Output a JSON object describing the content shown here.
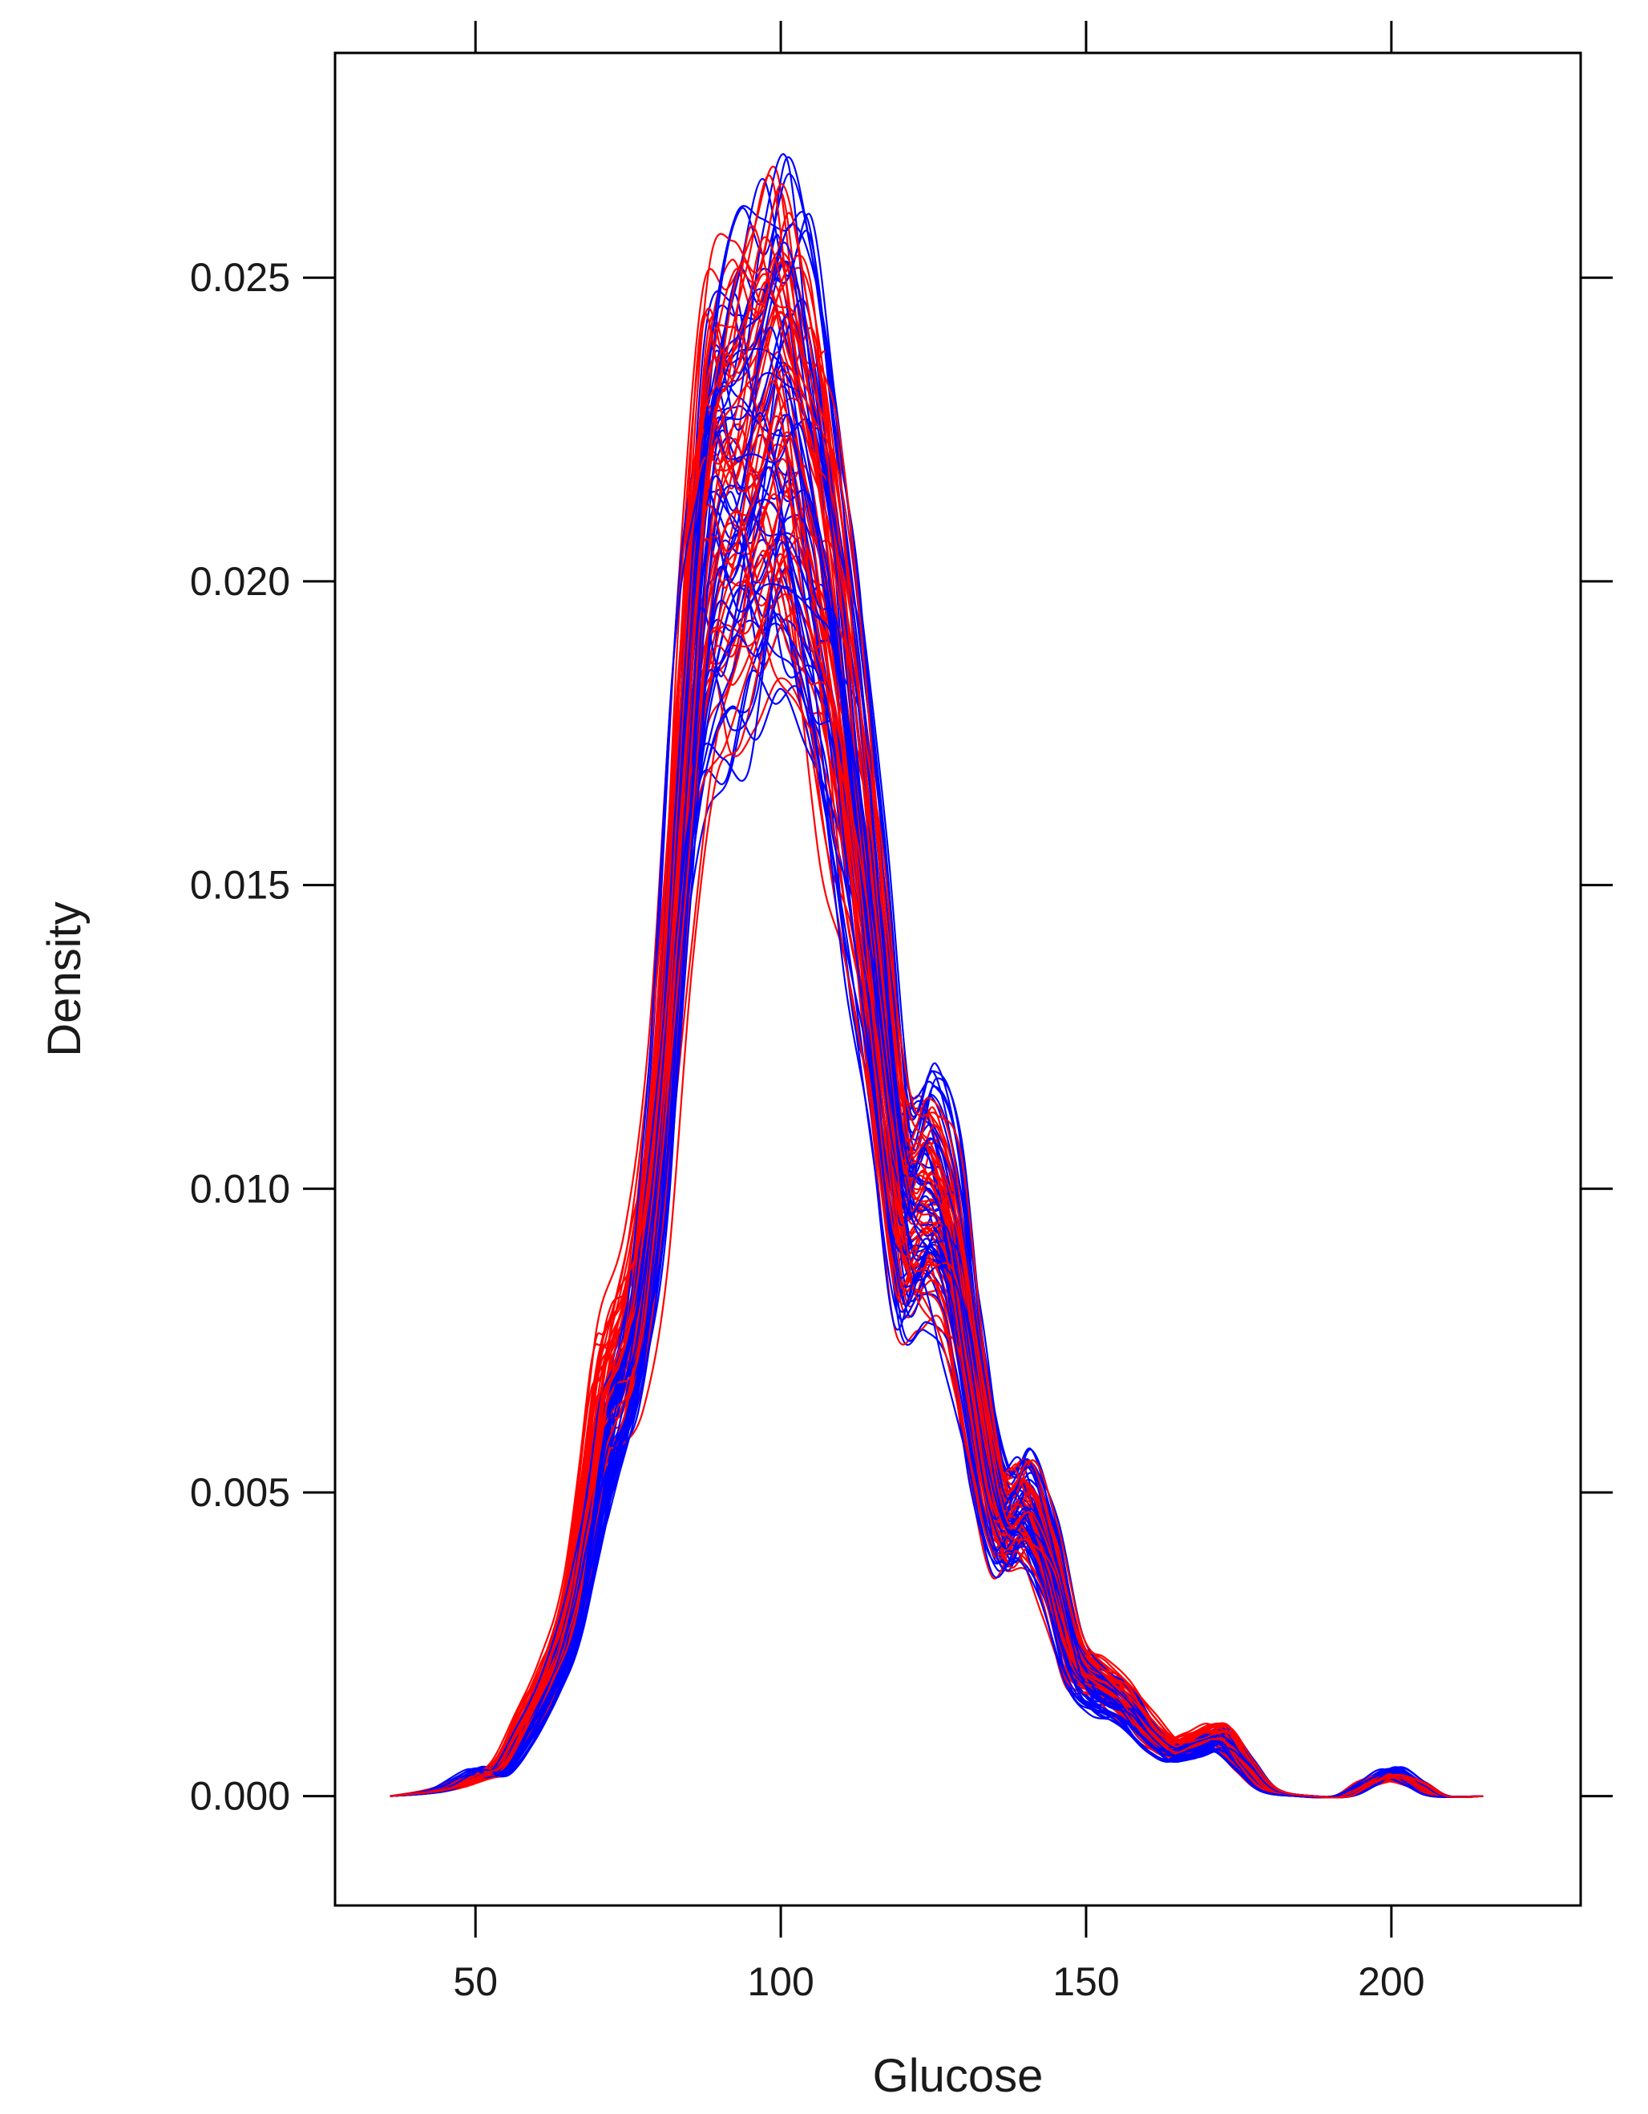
{
  "chart_data": {
    "type": "line",
    "title": "",
    "xlabel": "Glucose",
    "ylabel": "Density",
    "xlim": [
      27,
      231
    ],
    "ylim": [
      -0.0018,
      0.0287
    ],
    "xticks": [
      50,
      100,
      150,
      200
    ],
    "yticks": [
      0.0,
      0.005,
      0.01,
      0.015,
      0.02,
      0.025
    ],
    "xtick_labels": [
      "50",
      "100",
      "150",
      "200"
    ],
    "ytick_labels": [
      "0.000",
      "0.005",
      "0.010",
      "0.015",
      "0.020",
      "0.025"
    ],
    "grid": false,
    "legend": "none",
    "colors": {
      "group_a": "#0000ff",
      "group_b": "#ff0000"
    },
    "description_values": {
      "x_range_of_curves": [
        36,
        215
      ],
      "series_count_per_group": 50
    },
    "series": [
      {
        "color": "#0000ff",
        "x": [
          36,
          44,
          50,
          54,
          58,
          62,
          66,
          70,
          72,
          76,
          80,
          84,
          88,
          92,
          96,
          100,
          104,
          108,
          112,
          116,
          120,
          124,
          128,
          132,
          136,
          140,
          144,
          148,
          152,
          156,
          160,
          164,
          168,
          172,
          176,
          180,
          186,
          192,
          196,
          200,
          204,
          208,
          215
        ],
        "values": [
          0.0,
          0.0001,
          0.0004,
          0.0004,
          0.001,
          0.0018,
          0.003,
          0.005,
          0.006,
          0.0075,
          0.011,
          0.017,
          0.021,
          0.0215,
          0.022,
          0.0228,
          0.0215,
          0.0195,
          0.0165,
          0.013,
          0.0098,
          0.01,
          0.0092,
          0.0065,
          0.0045,
          0.0048,
          0.0038,
          0.0022,
          0.0017,
          0.0015,
          0.001,
          0.0007,
          0.0008,
          0.0009,
          0.0005,
          0.0001,
          0.0,
          0.0,
          0.0002,
          0.0004,
          0.0002,
          0.0,
          0.0
        ]
      },
      {
        "color": "#ff0000",
        "x": [
          36,
          44,
          50,
          54,
          58,
          62,
          66,
          70,
          72,
          76,
          80,
          84,
          88,
          92,
          96,
          100,
          104,
          108,
          112,
          116,
          120,
          124,
          128,
          132,
          136,
          140,
          144,
          148,
          152,
          156,
          160,
          164,
          168,
          172,
          176,
          180,
          186,
          192,
          196,
          200,
          204,
          208,
          215
        ],
        "values": [
          0.0,
          0.0001,
          0.0003,
          0.0005,
          0.0012,
          0.002,
          0.0033,
          0.006,
          0.0068,
          0.0078,
          0.0108,
          0.0165,
          0.0205,
          0.0212,
          0.0218,
          0.0224,
          0.0212,
          0.0192,
          0.0162,
          0.0128,
          0.0095,
          0.0096,
          0.0088,
          0.0062,
          0.0045,
          0.0046,
          0.0037,
          0.0023,
          0.0019,
          0.0016,
          0.0011,
          0.0008,
          0.0009,
          0.001,
          0.0005,
          0.0001,
          0.0,
          0.0,
          0.0002,
          0.0003,
          0.0002,
          0.0,
          0.0
        ]
      }
    ]
  }
}
